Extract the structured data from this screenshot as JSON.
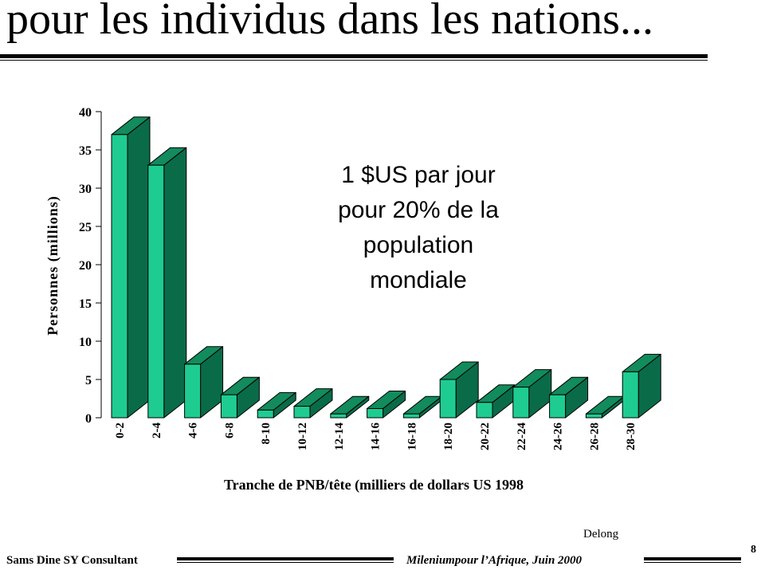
{
  "slide": {
    "title": "pour les individus dans les nations...",
    "annotation_lines": [
      "1 $US  par jour",
      "pour 20% de la",
      "population",
      "mondiale"
    ],
    "source": "Delong",
    "footer_left": "Sams Dine SY Consultant",
    "footer_right": "Mileniumpour l’Afrique, Juin 2000",
    "page_number": "8"
  },
  "chart_data": {
    "type": "bar",
    "style": "3d",
    "categories": [
      "0-2",
      "2-4",
      "4-6",
      "6-8",
      "8-10",
      "10-12",
      "12-14",
      "14-16",
      "16-18",
      "18-20",
      "20-22",
      "22-24",
      "24-26",
      "26-28",
      "28-30"
    ],
    "values": [
      37,
      33,
      7,
      3,
      1,
      1.5,
      0.5,
      1.2,
      0.5,
      5,
      2,
      4,
      3,
      0.5,
      6
    ],
    "xlabel": "Tranche de PNB/tête (milliers de dollars US 1998",
    "ylabel": "Personnes (millions)",
    "ylim": [
      0,
      40
    ],
    "yticks": [
      0,
      5,
      10,
      15,
      20,
      25,
      30,
      35,
      40
    ],
    "grid": false,
    "colors": {
      "front": "#1ecc91",
      "top": "#128b5d",
      "side": "#0a6b49",
      "outline": "#000000"
    }
  }
}
